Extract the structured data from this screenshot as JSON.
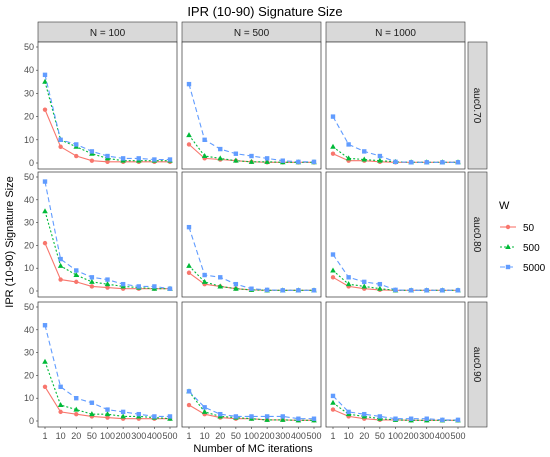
{
  "chart_data": {
    "type": "line",
    "title": "IPR (10-90) Signature Size",
    "xlabel": "Number of MC iterations",
    "ylabel": "IPR (10-90) Signature Size",
    "x": [
      "1",
      "10",
      "20",
      "50",
      "100",
      "200",
      "300",
      "400",
      "500"
    ],
    "ylim": [
      0,
      50
    ],
    "yticks": [
      0,
      10,
      20,
      30,
      40,
      50
    ],
    "columns": [
      "N = 100",
      "N = 500",
      "N = 1000"
    ],
    "rows": [
      "auc0.70",
      "auc0.80",
      "auc0.90"
    ],
    "legend": {
      "title": "W",
      "placement": "right",
      "entries": [
        {
          "name": "50",
          "color": "#F8766D",
          "shape": "circle",
          "dash": "solid"
        },
        {
          "name": "500",
          "color": "#00BA38",
          "shape": "triangle",
          "dash": "dotted"
        },
        {
          "name": "5000",
          "color": "#619CFF",
          "shape": "square",
          "dash": "dashed"
        }
      ]
    },
    "panels": [
      {
        "row": "auc0.70",
        "col": "N = 100",
        "series": {
          "50": [
            23,
            7,
            3,
            1,
            0.5,
            0.5,
            0.5,
            0.5,
            0.5
          ],
          "500": [
            35,
            10,
            7,
            4,
            2,
            1,
            1,
            1,
            1
          ],
          "5000": [
            38,
            10,
            8,
            5,
            3,
            2,
            2,
            1.5,
            1.5
          ]
        }
      },
      {
        "row": "auc0.70",
        "col": "N = 500",
        "series": {
          "50": [
            8,
            2,
            1.5,
            1,
            0.5,
            0.3,
            0.3,
            0.3,
            0.3
          ],
          "500": [
            12,
            3,
            2,
            1,
            0.5,
            0.5,
            0.3,
            0.3,
            0.3
          ],
          "5000": [
            34,
            10,
            6,
            4,
            3,
            2,
            1,
            0.5,
            0.5
          ]
        }
      },
      {
        "row": "auc0.70",
        "col": "N = 1000",
        "series": {
          "50": [
            4,
            1,
            1,
            0.5,
            0.3,
            0.3,
            0.3,
            0.3,
            0.3
          ],
          "500": [
            7,
            2,
            1.5,
            1,
            0.5,
            0.3,
            0.3,
            0.3,
            0.3
          ],
          "5000": [
            20,
            8,
            5,
            3,
            0.5,
            0.3,
            0.3,
            0.3,
            0.3
          ]
        }
      },
      {
        "row": "auc0.80",
        "col": "N = 100",
        "series": {
          "50": [
            21,
            5,
            4,
            2,
            1.5,
            1,
            1,
            1,
            1
          ],
          "500": [
            35,
            11,
            7,
            4,
            3,
            2,
            1.5,
            1,
            1
          ],
          "5000": [
            48,
            14,
            9,
            6,
            5,
            3,
            2,
            2,
            1
          ]
        }
      },
      {
        "row": "auc0.80",
        "col": "N = 500",
        "series": {
          "50": [
            8,
            3,
            2,
            1,
            0.5,
            0.3,
            0.3,
            0.3,
            0.3
          ],
          "500": [
            11,
            4,
            2,
            1,
            0.5,
            0.3,
            0.3,
            0.3,
            0.3
          ],
          "5000": [
            28,
            7,
            6,
            3,
            1,
            0.5,
            0.3,
            0.3,
            0.3
          ]
        }
      },
      {
        "row": "auc0.80",
        "col": "N = 1000",
        "series": {
          "50": [
            6,
            2,
            1,
            0.5,
            0.3,
            0.3,
            0.3,
            0.3,
            0.3
          ],
          "500": [
            9,
            3,
            2,
            1,
            0.3,
            0.3,
            0.3,
            0.3,
            0.3
          ],
          "5000": [
            16,
            6,
            4,
            3,
            0.5,
            0.3,
            0.3,
            0.3,
            0.3
          ]
        }
      },
      {
        "row": "auc0.90",
        "col": "N = 100",
        "series": {
          "50": [
            15,
            4,
            3,
            2,
            1.5,
            1,
            1,
            1,
            1
          ],
          "500": [
            26,
            7,
            5,
            3,
            3,
            2,
            2,
            1.5,
            1
          ],
          "5000": [
            42,
            15,
            10,
            8,
            5,
            4,
            3,
            2,
            2
          ]
        }
      },
      {
        "row": "auc0.90",
        "col": "N = 500",
        "series": {
          "50": [
            7,
            3,
            1.5,
            1,
            1,
            0.5,
            0.5,
            0.3,
            0.3
          ],
          "500": [
            13,
            4,
            2,
            1.5,
            1,
            0.5,
            0.5,
            0.3,
            0.3
          ],
          "5000": [
            13,
            6,
            3,
            2,
            2,
            2,
            2,
            1,
            1
          ]
        }
      },
      {
        "row": "auc0.90",
        "col": "N = 1000",
        "series": {
          "50": [
            5,
            2,
            1,
            0.5,
            0.5,
            0.3,
            0.3,
            0.3,
            0.3
          ],
          "500": [
            8,
            3,
            2,
            1,
            0.5,
            0.3,
            0.3,
            0.3,
            0.3
          ],
          "5000": [
            11,
            4,
            3,
            2,
            1,
            1,
            1,
            0.5,
            0.5
          ]
        }
      }
    ]
  }
}
